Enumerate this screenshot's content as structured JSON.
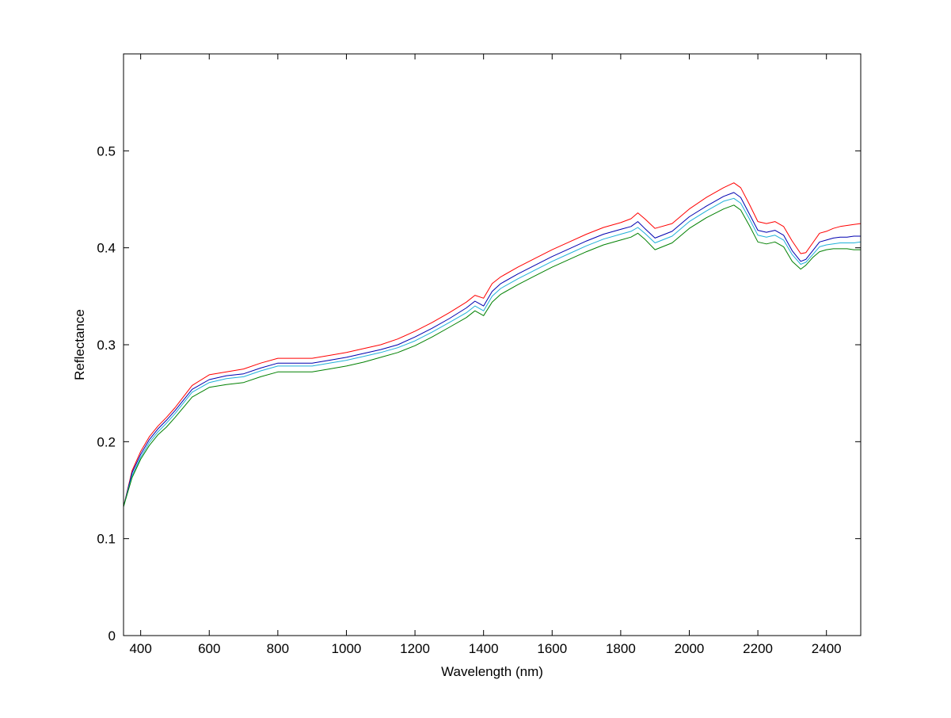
{
  "chart_data": {
    "type": "line",
    "title": "",
    "xlabel": "Wavelength (nm)",
    "ylabel": "Reflectance",
    "xlim": [
      350,
      2500
    ],
    "ylim": [
      0,
      0.6
    ],
    "xticks": [
      {
        "value": 400,
        "label": "400"
      },
      {
        "value": 600,
        "label": "600"
      },
      {
        "value": 800,
        "label": "800"
      },
      {
        "value": 1000,
        "label": "1000"
      },
      {
        "value": 1200,
        "label": "1200"
      },
      {
        "value": 1400,
        "label": "1400"
      },
      {
        "value": 1600,
        "label": "1600"
      },
      {
        "value": 1800,
        "label": "1800"
      },
      {
        "value": 2000,
        "label": "2000"
      },
      {
        "value": 2200,
        "label": "2200"
      },
      {
        "value": 2400,
        "label": "2400"
      }
    ],
    "yticks": [
      {
        "value": 0,
        "label": "0"
      },
      {
        "value": 0.1,
        "label": "0.1"
      },
      {
        "value": 0.2,
        "label": "0.2"
      },
      {
        "value": 0.3,
        "label": "0.3"
      },
      {
        "value": 0.4,
        "label": "0.4"
      },
      {
        "value": 0.5,
        "label": "0.5"
      }
    ],
    "grid": false,
    "legend": "none",
    "x": [
      350,
      375,
      400,
      425,
      450,
      475,
      500,
      550,
      600,
      650,
      700,
      750,
      800,
      850,
      900,
      950,
      1000,
      1050,
      1100,
      1150,
      1200,
      1250,
      1300,
      1350,
      1375,
      1400,
      1425,
      1450,
      1500,
      1550,
      1600,
      1650,
      1700,
      1750,
      1800,
      1830,
      1850,
      1870,
      1900,
      1950,
      2000,
      2050,
      2100,
      2130,
      2150,
      2175,
      2200,
      2225,
      2250,
      2275,
      2300,
      2325,
      2340,
      2360,
      2380,
      2400,
      2420,
      2440,
      2460,
      2480,
      2500
    ],
    "series": [
      {
        "color": "#ff0000",
        "values": [
          0.133,
          0.17,
          0.19,
          0.205,
          0.216,
          0.225,
          0.235,
          0.258,
          0.269,
          0.272,
          0.275,
          0.281,
          0.286,
          0.286,
          0.286,
          0.289,
          0.292,
          0.296,
          0.3,
          0.306,
          0.314,
          0.323,
          0.333,
          0.344,
          0.351,
          0.348,
          0.363,
          0.37,
          0.38,
          0.389,
          0.398,
          0.406,
          0.414,
          0.421,
          0.426,
          0.43,
          0.436,
          0.43,
          0.42,
          0.425,
          0.44,
          0.452,
          0.462,
          0.467,
          0.462,
          0.445,
          0.427,
          0.425,
          0.427,
          0.422,
          0.407,
          0.394,
          0.395,
          0.405,
          0.415,
          0.417,
          0.42,
          0.422,
          0.423,
          0.424,
          0.425
        ]
      },
      {
        "color": "#0000b0",
        "values": [
          0.133,
          0.168,
          0.187,
          0.202,
          0.213,
          0.222,
          0.232,
          0.254,
          0.264,
          0.268,
          0.27,
          0.276,
          0.281,
          0.281,
          0.281,
          0.284,
          0.287,
          0.291,
          0.295,
          0.3,
          0.308,
          0.317,
          0.327,
          0.338,
          0.345,
          0.34,
          0.355,
          0.363,
          0.373,
          0.382,
          0.391,
          0.399,
          0.407,
          0.414,
          0.419,
          0.422,
          0.427,
          0.42,
          0.41,
          0.417,
          0.432,
          0.443,
          0.453,
          0.457,
          0.452,
          0.435,
          0.418,
          0.416,
          0.418,
          0.413,
          0.397,
          0.386,
          0.388,
          0.397,
          0.406,
          0.408,
          0.41,
          0.411,
          0.411,
          0.412,
          0.412
        ]
      },
      {
        "color": "#20b0d8",
        "values": [
          0.133,
          0.165,
          0.184,
          0.199,
          0.21,
          0.219,
          0.229,
          0.251,
          0.261,
          0.265,
          0.267,
          0.273,
          0.278,
          0.278,
          0.278,
          0.281,
          0.284,
          0.288,
          0.292,
          0.297,
          0.304,
          0.313,
          0.323,
          0.333,
          0.34,
          0.335,
          0.35,
          0.358,
          0.368,
          0.377,
          0.386,
          0.394,
          0.402,
          0.409,
          0.414,
          0.417,
          0.421,
          0.415,
          0.405,
          0.412,
          0.427,
          0.438,
          0.448,
          0.451,
          0.446,
          0.43,
          0.413,
          0.411,
          0.413,
          0.408,
          0.393,
          0.383,
          0.385,
          0.393,
          0.401,
          0.403,
          0.404,
          0.405,
          0.405,
          0.405,
          0.406
        ]
      },
      {
        "color": "#008000",
        "values": [
          0.133,
          0.163,
          0.182,
          0.196,
          0.207,
          0.215,
          0.225,
          0.246,
          0.256,
          0.259,
          0.261,
          0.267,
          0.272,
          0.272,
          0.272,
          0.275,
          0.278,
          0.282,
          0.287,
          0.292,
          0.299,
          0.308,
          0.318,
          0.328,
          0.335,
          0.33,
          0.344,
          0.352,
          0.362,
          0.371,
          0.38,
          0.388,
          0.396,
          0.403,
          0.408,
          0.411,
          0.415,
          0.409,
          0.398,
          0.405,
          0.42,
          0.431,
          0.44,
          0.444,
          0.439,
          0.423,
          0.406,
          0.404,
          0.406,
          0.401,
          0.386,
          0.378,
          0.382,
          0.39,
          0.396,
          0.398,
          0.399,
          0.399,
          0.399,
          0.398,
          0.398
        ]
      }
    ]
  }
}
